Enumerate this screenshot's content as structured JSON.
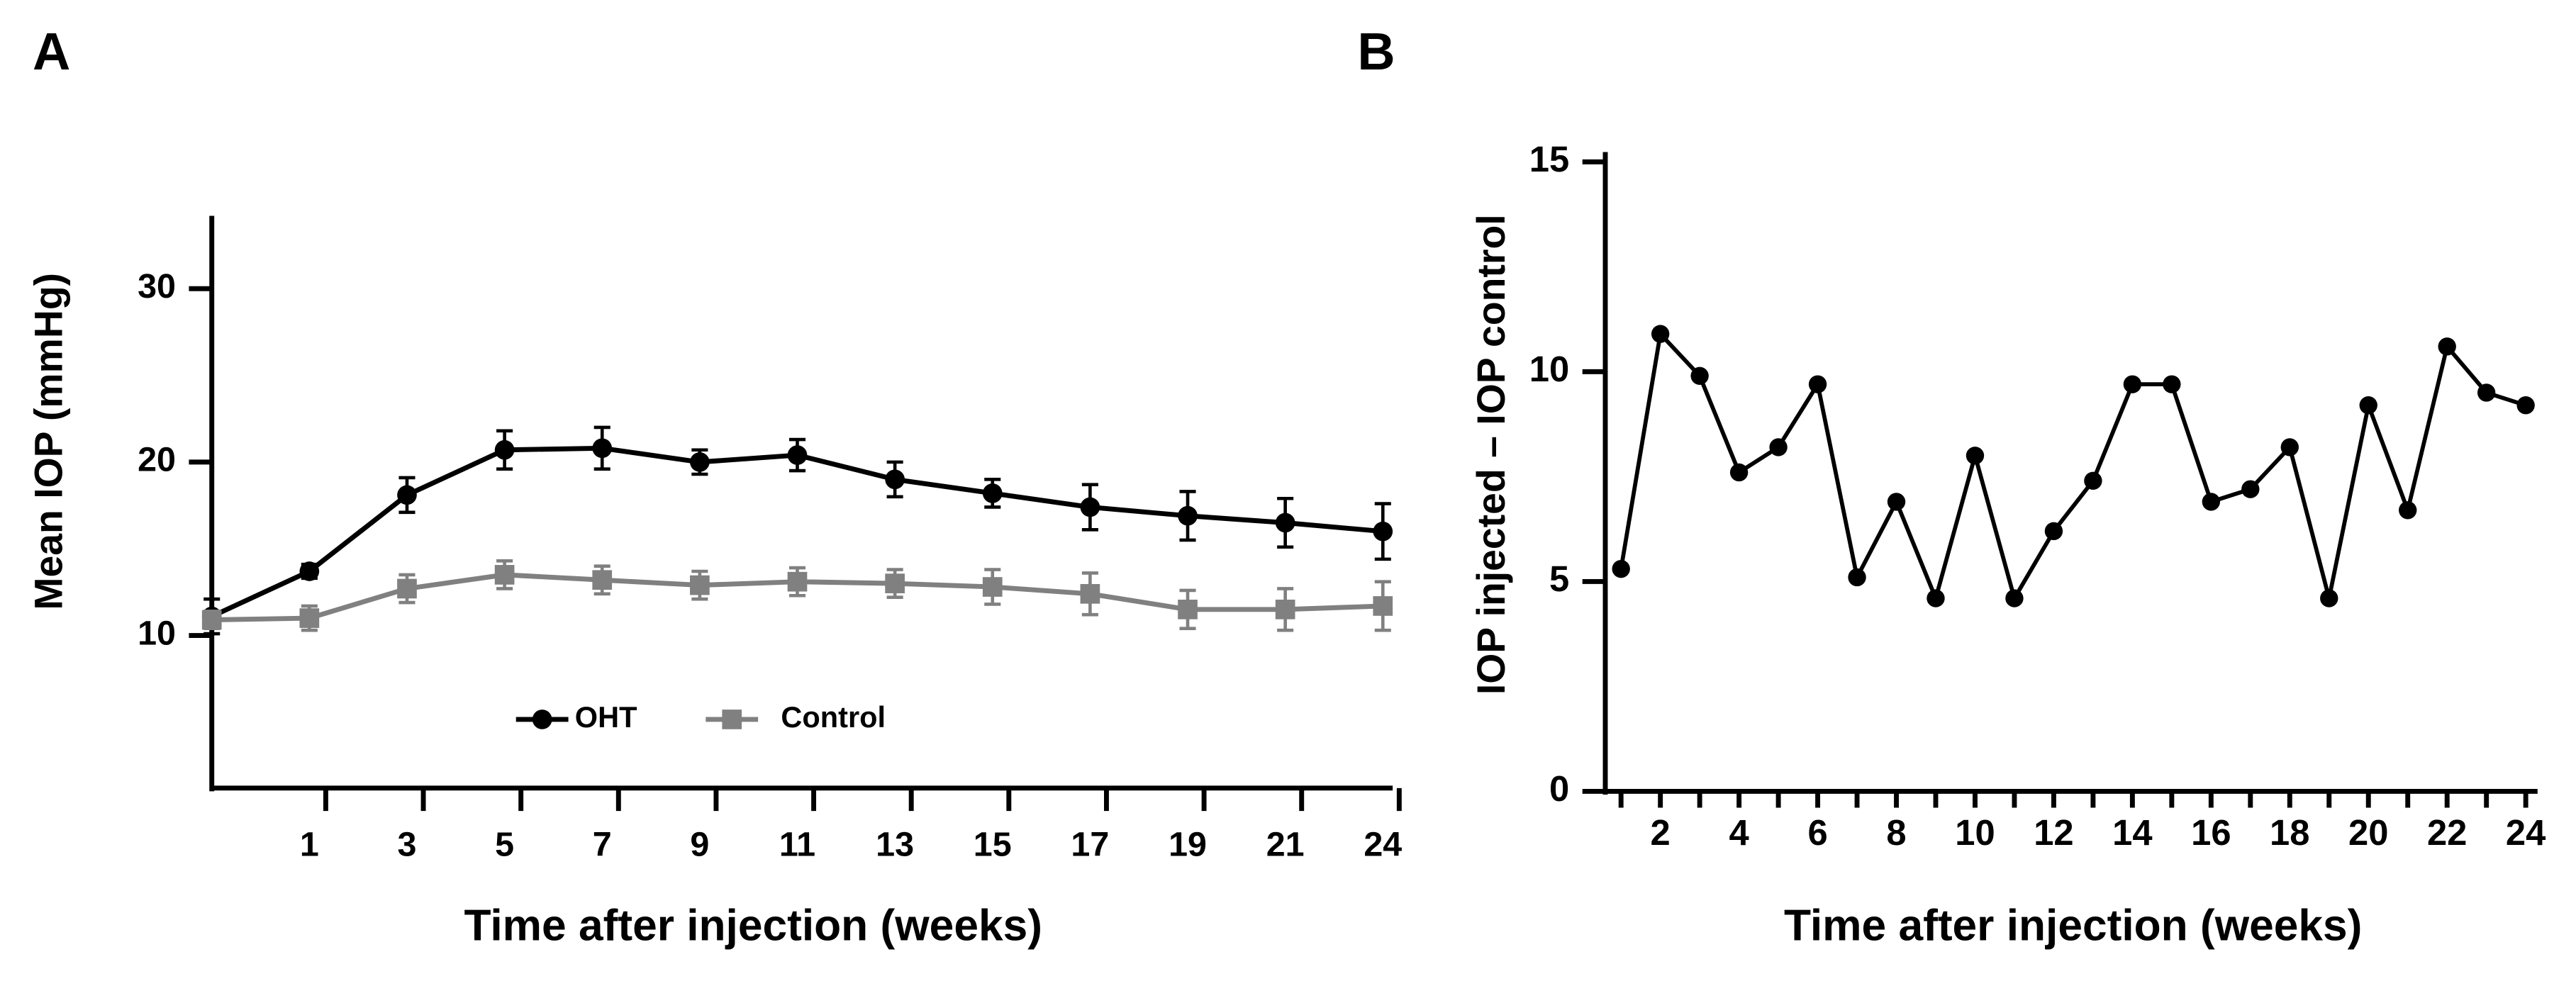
{
  "chart_data": [
    {
      "type": "line",
      "panel": "A",
      "ylabel": "Mean IOP (mmHg)",
      "xlabel": "Time after injection (weeks)",
      "categories": [
        null,
        "1",
        "3",
        "5",
        "7",
        "9",
        "11",
        "13",
        "15",
        "17",
        "19",
        "21",
        "24"
      ],
      "ylim": [
        1.2,
        34.2
      ],
      "yticks": [
        10,
        20,
        30
      ],
      "series": [
        {
          "name": "OHT",
          "color": "#000000",
          "marker": "circle",
          "values": [
            11.1,
            13.7,
            18.1,
            20.7,
            20.8,
            20.0,
            20.4,
            19.0,
            18.2,
            17.4,
            16.9,
            16.5,
            16.0
          ],
          "errors": [
            1.0,
            0.4,
            1.0,
            1.1,
            1.2,
            0.7,
            0.9,
            1.0,
            0.8,
            1.3,
            1.4,
            1.4,
            1.6
          ]
        },
        {
          "name": "Control",
          "color": "#808080",
          "marker": "square",
          "values": [
            10.9,
            11.0,
            12.7,
            13.5,
            13.2,
            12.9,
            13.1,
            13.0,
            12.8,
            12.4,
            11.5,
            11.5,
            11.7
          ],
          "errors": [
            0.5,
            0.7,
            0.8,
            0.8,
            0.8,
            0.8,
            0.8,
            0.8,
            1.0,
            1.2,
            1.1,
            1.2,
            1.4
          ]
        }
      ]
    },
    {
      "type": "line",
      "panel": "B",
      "ylabel": "IOP injected – IOP control",
      "xlabel": "Time after injection (weeks)",
      "x": [
        1,
        2,
        3,
        4,
        5,
        6,
        7,
        8,
        9,
        10,
        11,
        12,
        13,
        14,
        15,
        16,
        17,
        18,
        19,
        20,
        21,
        22,
        23,
        24
      ],
      "values": [
        5.3,
        10.9,
        9.9,
        7.6,
        8.2,
        9.7,
        5.1,
        6.9,
        4.6,
        8.0,
        4.6,
        6.2,
        7.4,
        9.7,
        9.7,
        6.9,
        7.2,
        8.2,
        4.6,
        9.2,
        6.7,
        10.6,
        9.5,
        9.2
      ],
      "color": "#000000",
      "xlim": [
        0.6,
        24.3
      ],
      "xticks": [
        2,
        4,
        6,
        8,
        10,
        12,
        14,
        16,
        18,
        20,
        22,
        24
      ],
      "minor_xticks": [
        1,
        3,
        5,
        7,
        9,
        11,
        13,
        15,
        17,
        19,
        21,
        23
      ],
      "ylim": [
        0,
        15
      ],
      "yticks": [
        0,
        5,
        10,
        15
      ]
    }
  ]
}
